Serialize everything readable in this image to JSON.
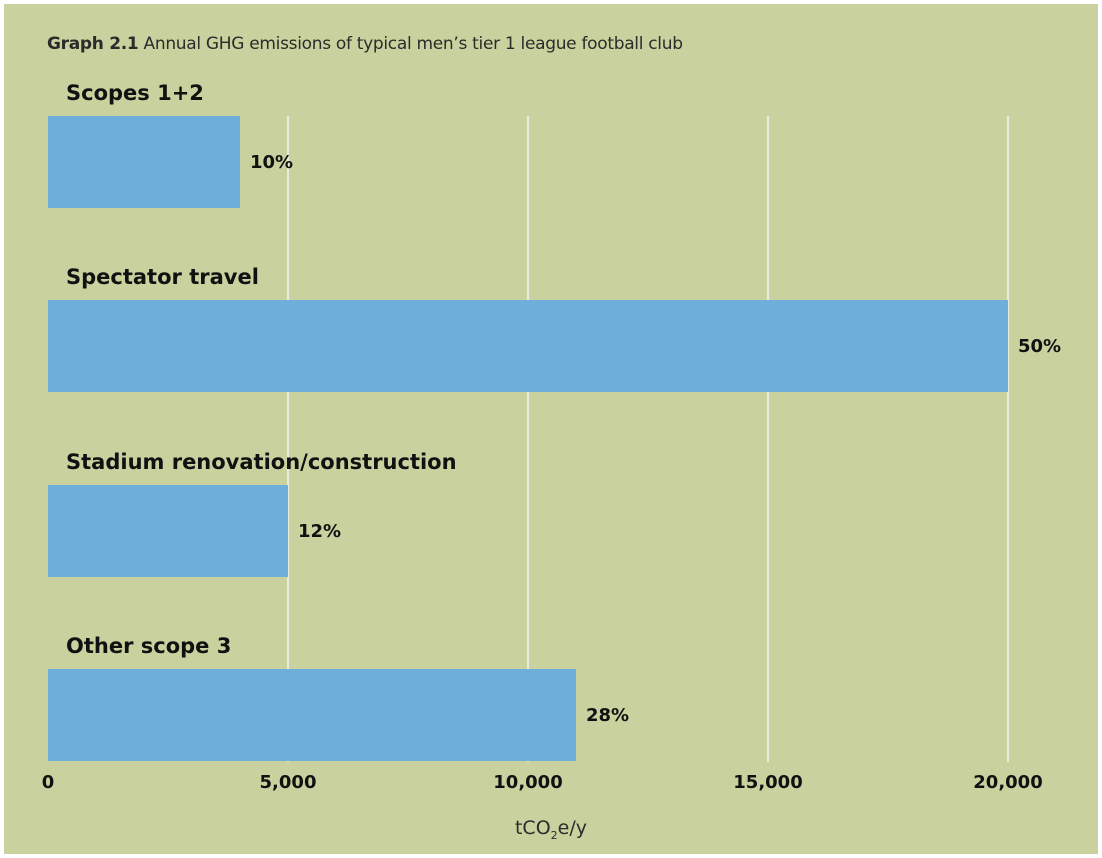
{
  "header": {
    "title_prefix": "Graph 2.1",
    "title_rest": "Annual GHG emissions of typical men’s tier 1 league football club"
  },
  "colors": {
    "background": "#c9d29e",
    "bar": "#6eaedb",
    "grid": "#f4f6ea"
  },
  "chart_data": {
    "type": "bar",
    "orientation": "horizontal",
    "title": "Graph 2.1 Annual GHG emissions of typical men’s tier 1 league football club",
    "categories": [
      "Scopes 1+2",
      "Spectator travel",
      "Stadium renovation/construction",
      "Other scope 3"
    ],
    "values": [
      4000,
      20000,
      5000,
      11000
    ],
    "data_labels": [
      "10%",
      "50%",
      "12%",
      "28%"
    ],
    "xlabel": "tCO₂e/y",
    "xlim": [
      0,
      20000
    ],
    "ticks": [
      0,
      5000,
      10000,
      15000,
      20000
    ],
    "tick_labels": [
      "0",
      "5,000",
      "10,000",
      "15,000",
      "20,000"
    ],
    "grid": true,
    "legend": "none"
  }
}
